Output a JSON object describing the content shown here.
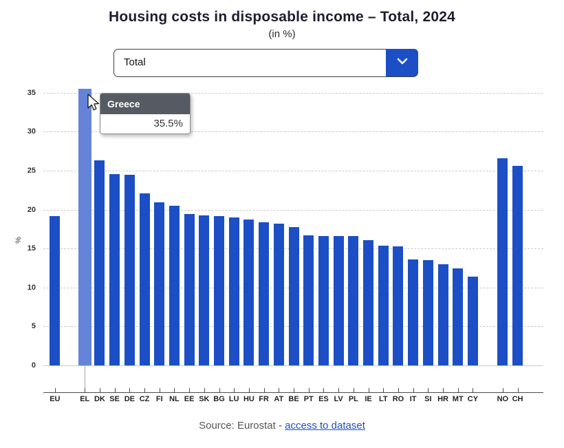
{
  "header": {
    "title": "Housing costs in disposable income – Total, 2024",
    "subtitle": "(in %)"
  },
  "dropdown": {
    "value": "Total",
    "icon": "chevron-down"
  },
  "tooltip": {
    "title": "Greece",
    "value": "35.5%"
  },
  "source": {
    "prefix": "Source: Eurostat - ",
    "link_label": "access to dataset"
  },
  "colors": {
    "bar": "#1c4fc5",
    "bar_highlight": "#6584d9",
    "dropdown_button": "#1c4fc5",
    "tooltip_header": "#565b63",
    "link": "#1b4fc9"
  },
  "chart_data": {
    "type": "bar",
    "title": "Housing costs in disposable income – Total, 2024",
    "subtitle": "(in %)",
    "xlabel": "",
    "ylabel": "%",
    "ylim": [
      0,
      36.3
    ],
    "yticks": [
      0,
      5,
      10,
      15,
      20,
      25,
      30,
      35
    ],
    "grid": "horizontal-dashed",
    "legend": "none",
    "highlighted_category": "EL",
    "categories": [
      "EU",
      "EL",
      "DK",
      "SE",
      "DE",
      "CZ",
      "FI",
      "NL",
      "EE",
      "SK",
      "BG",
      "LU",
      "HU",
      "FR",
      "AT",
      "BE",
      "PT",
      "ES",
      "LV",
      "PL",
      "IE",
      "LT",
      "RO",
      "IT",
      "SI",
      "HR",
      "MT",
      "CY",
      "NO",
      "CH"
    ],
    "values": [
      19.2,
      35.5,
      26.3,
      24.6,
      24.5,
      22.1,
      20.9,
      20.5,
      19.4,
      19.3,
      19.2,
      19.0,
      18.7,
      18.4,
      18.2,
      17.8,
      16.7,
      16.6,
      16.6,
      16.6,
      16.1,
      15.4,
      15.3,
      13.6,
      13.5,
      13.0,
      12.5,
      11.4,
      26.6,
      25.6
    ],
    "slots": [
      0,
      2,
      3,
      4,
      5,
      6,
      7,
      8,
      9,
      10,
      11,
      12,
      13,
      14,
      15,
      16,
      17,
      18,
      19,
      20,
      21,
      22,
      23,
      24,
      25,
      26,
      27,
      28,
      30,
      31
    ]
  }
}
